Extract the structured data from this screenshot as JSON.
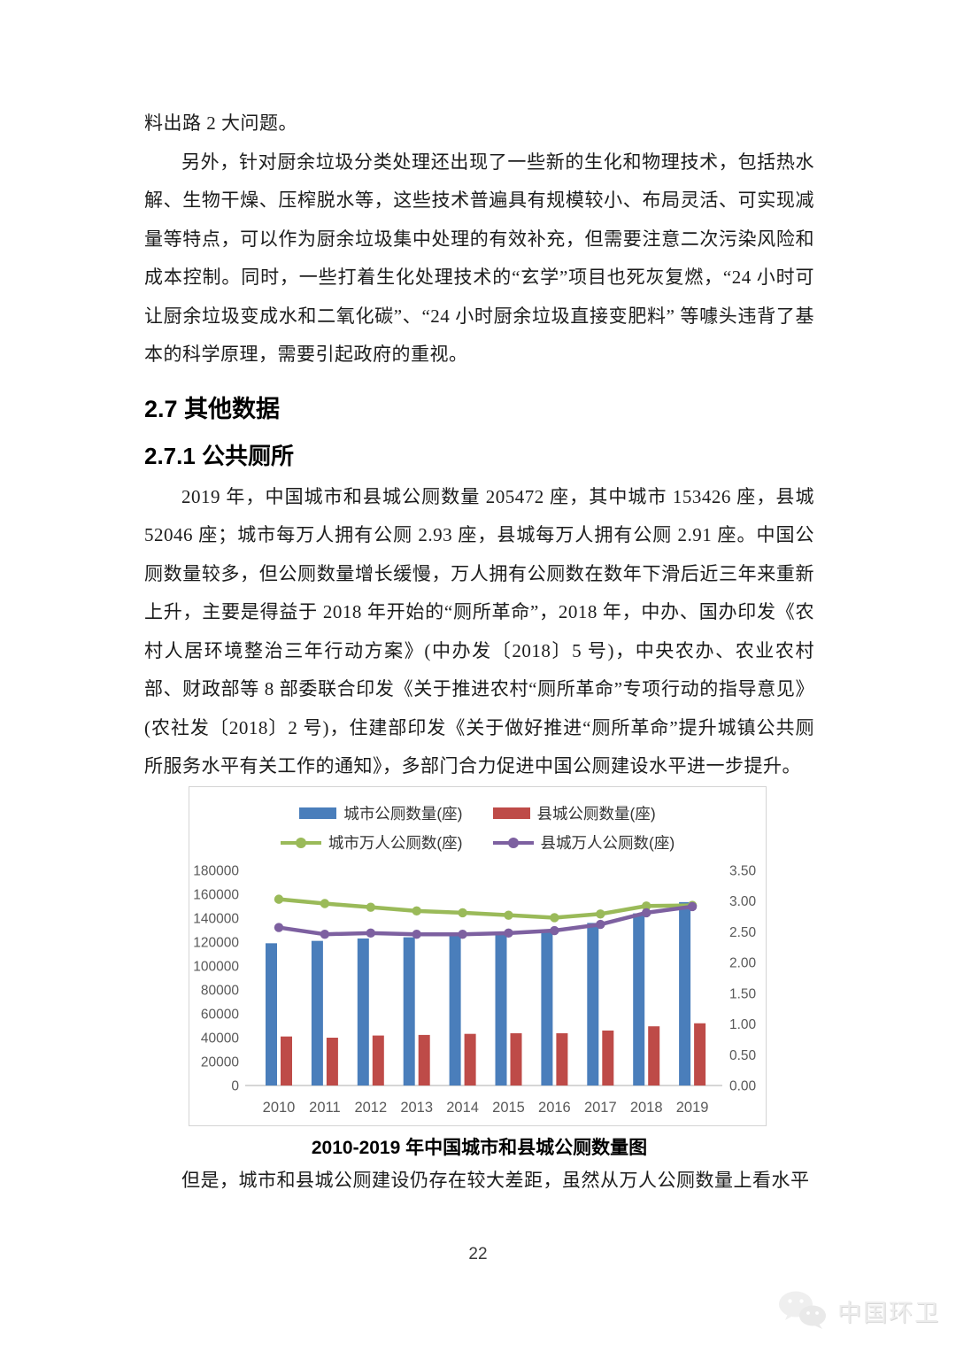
{
  "page": {
    "paragraph_continued": "料出路 2 大问题。",
    "paragraph_2": "另外，针对厨余垃圾分类处理还出现了一些新的生化和物理技术，包括热水解、生物干燥、压榨脱水等，这些技术普遍具有规模较小、布局灵活、可实现减量等特点，可以作为厨余垃圾集中处理的有效补充，但需要注意二次污染风险和成本控制。同时，一些打着生化处理技术的“玄学”项目也死灰复燃，“24 小时可让厨余垃圾变成水和二氧化碳”、“24 小时厨余垃圾直接变肥料” 等噱头违背了基本的科学原理，需要引起政府的重视。",
    "heading_section": "2.7 其他数据",
    "heading_subsection": "2.7.1 公共厕所",
    "paragraph_3": "2019 年，中国城市和县城公厕数量 205472 座，其中城市 153426 座，县城 52046 座；城市每万人拥有公厕 2.93 座，县城每万人拥有公厕 2.91 座。中国公厕数量较多，但公厕数量增长缓慢，万人拥有公厕数在数年下滑后近三年来重新上升，主要是得益于 2018 年开始的“厕所革命”，2018 年，中办、国办印发《农村人居环境整治三年行动方案》(中办发〔2018〕5 号)，中央农办、农业农村部、财政部等 8 部委联合印发《关于推进农村“厕所革命”专项行动的指导意见》(农社发〔2018〕2 号)，住建部印发《关于做好推进“厕所革命”提升城镇公共厕所服务水平有关工作的通知》，多部门合力促进中国公厕建设水平进一步提升。",
    "paragraph_4": "但是，城市和县城公厕建设仍存在较大差距，虽然从万人公厕数量上看水平",
    "page_number": "22",
    "watermark_text": "中国环卫"
  },
  "chart_data": {
    "type": "combo bar+line",
    "title": "2010-2019 年中国城市和县城公厕数量图",
    "categories": [
      "2010",
      "2011",
      "2012",
      "2013",
      "2014",
      "2015",
      "2016",
      "2017",
      "2018",
      "2019"
    ],
    "series": [
      {
        "name": "城市公厕数量(座)",
        "type": "bar",
        "axis": "left",
        "color": "#4a7ebb",
        "values": [
          119000,
          121000,
          123000,
          124000,
          126000,
          127000,
          128000,
          136000,
          144000,
          153426
        ]
      },
      {
        "name": "县城公厕数量(座)",
        "type": "bar",
        "axis": "left",
        "color": "#be4b48",
        "values": [
          41000,
          40000,
          41800,
          42300,
          43200,
          43700,
          43700,
          46000,
          49500,
          52046
        ]
      },
      {
        "name": "城市万人公厕数(座)",
        "type": "line",
        "axis": "right",
        "color": "#9aba59",
        "values": [
          3.03,
          2.96,
          2.9,
          2.84,
          2.81,
          2.77,
          2.73,
          2.79,
          2.92,
          2.93
        ]
      },
      {
        "name": "县城万人公厕数(座)",
        "type": "line",
        "axis": "right",
        "color": "#7d60a0",
        "values": [
          2.57,
          2.46,
          2.48,
          2.46,
          2.46,
          2.48,
          2.52,
          2.62,
          2.81,
          2.91
        ]
      }
    ],
    "left_axis": {
      "min": 0,
      "max": 180000,
      "step": 20000,
      "tick_labels": [
        "180000",
        "160000",
        "140000",
        "120000",
        "100000",
        "80000",
        "60000",
        "40000",
        "20000",
        "0"
      ]
    },
    "right_axis": {
      "min": 0,
      "max": 3.5,
      "step": 0.5,
      "tick_labels": [
        "3.50",
        "3.00",
        "2.50",
        "2.00",
        "1.50",
        "1.00",
        "0.50",
        "0.00"
      ]
    },
    "legend_position": "top",
    "grid": "off"
  }
}
